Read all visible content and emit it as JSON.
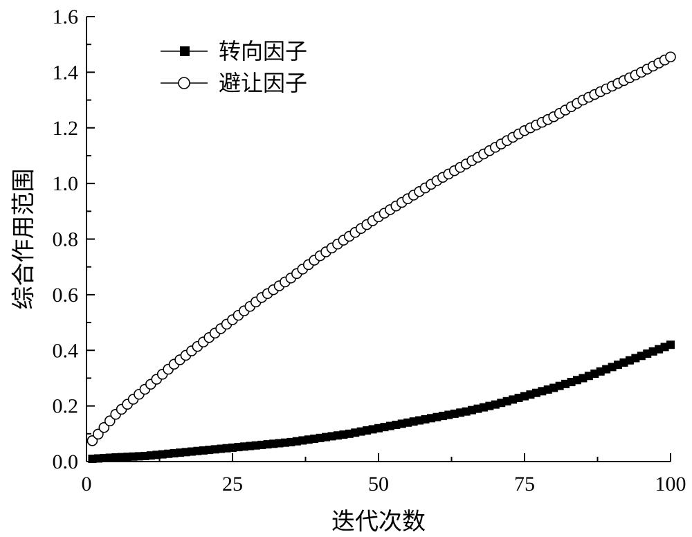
{
  "chart_data": {
    "type": "scatter",
    "xlabel": "迭代次数",
    "ylabel": "综合作用范围",
    "xlim": [
      0,
      100
    ],
    "ylim": [
      0,
      1.6
    ],
    "x_ticks": [
      "0",
      "25",
      "50",
      "75",
      "100"
    ],
    "y_ticks": [
      "0.0",
      "0.2",
      "0.4",
      "0.6",
      "0.8",
      "1.0",
      "1.2",
      "1.4",
      "1.6"
    ],
    "grid": false,
    "legend_position": "top-left",
    "x": [
      1,
      25,
      50,
      75,
      100
    ],
    "series": [
      {
        "name": "转向因子",
        "marker": "filled-square",
        "color": "#000000",
        "x": [
          1,
          5,
          10,
          15,
          20,
          25,
          30,
          35,
          40,
          45,
          50,
          55,
          60,
          65,
          70,
          75,
          80,
          85,
          90,
          95,
          100
        ],
        "values": [
          0.01,
          0.015,
          0.02,
          0.03,
          0.04,
          0.05,
          0.06,
          0.07,
          0.085,
          0.1,
          0.12,
          0.14,
          0.16,
          0.18,
          0.205,
          0.235,
          0.265,
          0.3,
          0.34,
          0.38,
          0.42
        ]
      },
      {
        "name": "避让因子",
        "marker": "open-circle",
        "color": "#000000",
        "x": [
          1,
          5,
          10,
          15,
          20,
          25,
          30,
          35,
          40,
          45,
          50,
          55,
          60,
          65,
          70,
          75,
          80,
          85,
          90,
          95,
          100
        ],
        "values": [
          0.075,
          0.17,
          0.26,
          0.35,
          0.43,
          0.51,
          0.59,
          0.66,
          0.74,
          0.81,
          0.88,
          0.945,
          1.01,
          1.07,
          1.13,
          1.19,
          1.24,
          1.3,
          1.35,
          1.4,
          1.455
        ]
      }
    ]
  }
}
